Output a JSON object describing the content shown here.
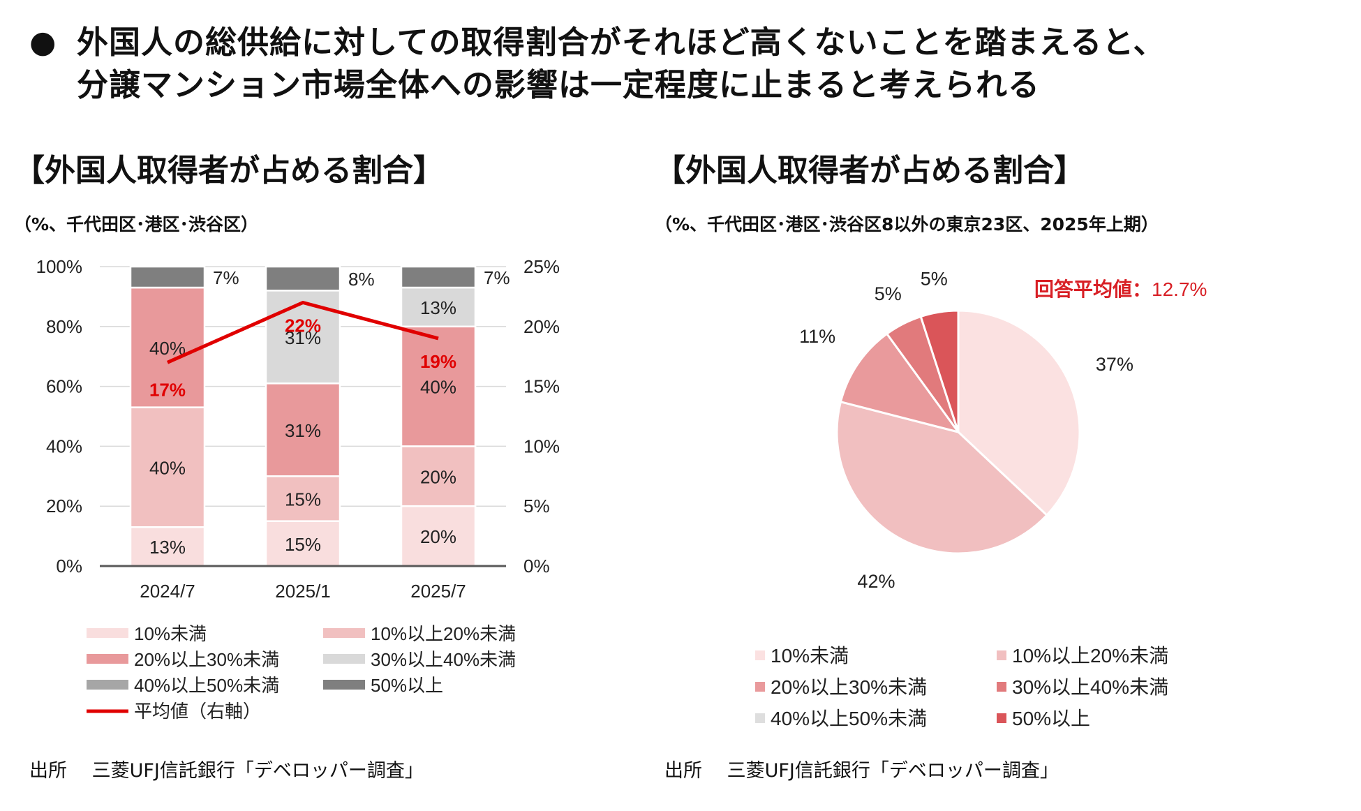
{
  "headline": {
    "bullet": "●",
    "lines": [
      "外国人の総供給に対しての取得割合がそれほど高くないことを踏まえると、",
      "分譲マンション市場全体への影響は一定程度に止まると考えられる"
    ]
  },
  "left_panel": {
    "title": "【外国人取得者が占める割合】",
    "note": "（%、千代田区･港区･渋谷区）",
    "source": "出所　 三菱UFJ信託銀行「デベロッパー調査」"
  },
  "right_panel": {
    "title": "【外国人取得者が占める割合】",
    "note": "（%、千代田区･港区･渋谷区8以外の東京23区、2025年上期）",
    "source": "出所　 三菱UFJ信託銀行「デベロッパー調査」"
  },
  "chart_data": [
    {
      "type": "bar",
      "stacked": true,
      "categories": [
        "2024/7",
        "2025/1",
        "2025/7"
      ],
      "series": [
        {
          "name": "10%未満",
          "values": [
            13,
            15,
            20
          ],
          "labels": [
            "13%",
            "15%",
            "20%"
          ],
          "color": "#f9dede"
        },
        {
          "name": "10%以上20%未満",
          "values": [
            40,
            15,
            20
          ],
          "labels": [
            "40%",
            "15%",
            "20%"
          ],
          "color": "#f1c0c0"
        },
        {
          "name": "20%以上30%未満",
          "values": [
            40,
            31,
            40
          ],
          "labels": [
            "40%",
            "31%",
            "40%"
          ],
          "color": "#e8999b"
        },
        {
          "name": "30%以上40%未満",
          "values": [
            0,
            31,
            13
          ],
          "labels": [
            "",
            "31%",
            "13%"
          ],
          "color": "#d9d9d9"
        },
        {
          "name": "40%以上50%未満",
          "values": [
            0,
            0,
            0
          ],
          "labels": [
            "",
            "",
            ""
          ],
          "color": "#a6a6a6"
        },
        {
          "name": "50%以上",
          "values": [
            7,
            8,
            7
          ],
          "labels": [
            "7%",
            "8%",
            "7%"
          ],
          "color": "#7f7f7f"
        }
      ],
      "line_series": {
        "name": "平均値（右軸）",
        "values": [
          17,
          22,
          19
        ],
        "labels": [
          "17%",
          "22%",
          "19%"
        ],
        "color": "#e00000",
        "axis": "right"
      },
      "y_ticks": [
        "0%",
        "20%",
        "40%",
        "60%",
        "80%",
        "100%"
      ],
      "y2_ticks": [
        "0%",
        "5%",
        "10%",
        "15%",
        "20%",
        "25%"
      ],
      "ylim": [
        0,
        100
      ],
      "y2lim": [
        0,
        25
      ],
      "grid": true,
      "legend_position": "bottom"
    },
    {
      "type": "pie",
      "slices": [
        {
          "name": "10%未満",
          "value": 37,
          "label": "37%",
          "color": "#fbe1e1"
        },
        {
          "name": "10%以上20%未満",
          "value": 42,
          "label": "42%",
          "color": "#f1bfc0"
        },
        {
          "name": "20%以上30%未満",
          "value": 11,
          "label": "11%",
          "color": "#e99a9c"
        },
        {
          "name": "30%以上40%未満",
          "value": 5,
          "label": "5%",
          "color": "#e17a7c"
        },
        {
          "name": "40%以上50%未満",
          "value": 0,
          "label": "",
          "color": "#dedede"
        },
        {
          "name": "50%以上",
          "value": 5,
          "label": "5%",
          "color": "#da5559"
        }
      ],
      "annotation": {
        "label": "回答平均値：",
        "value": "12.7%",
        "color": "#d81f25"
      },
      "legend_position": "bottom"
    }
  ]
}
